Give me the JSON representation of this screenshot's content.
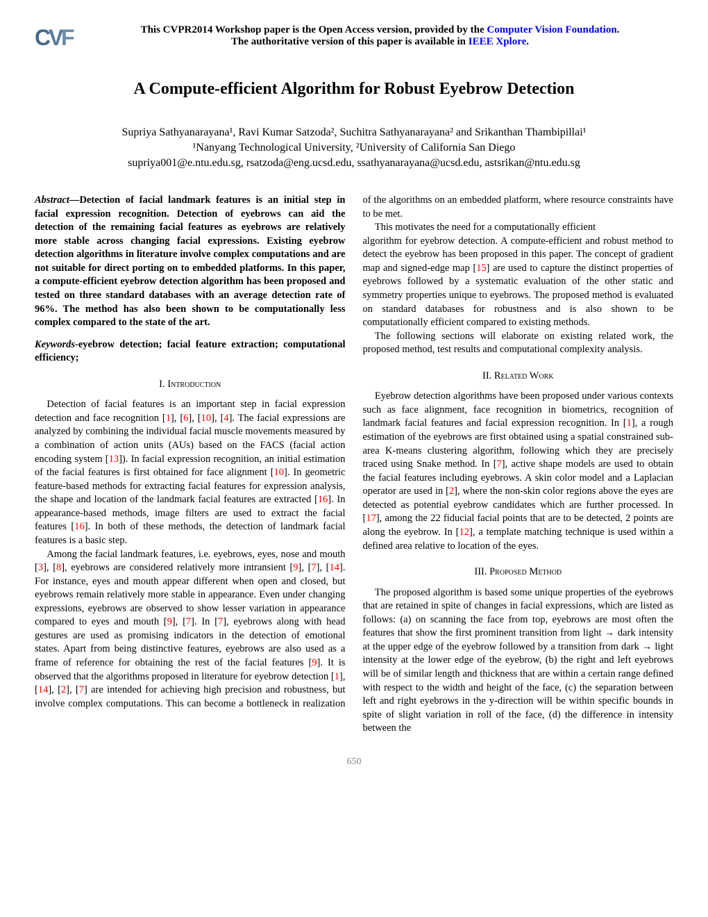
{
  "banner": {
    "line1_pre": "This CVPR2014 Workshop paper is the Open Access version, provided by the ",
    "line1_link": "Computer Vision Foundation",
    "line1_post": ".",
    "line2_pre": "The authoritative version of this paper is available in ",
    "line2_link": "IEEE Xplore",
    "line2_post": "."
  },
  "title": "A Compute-efficient Algorithm for Robust Eyebrow Detection",
  "authors": "Supriya Sathyanarayana¹, Ravi Kumar Satzoda², Suchitra Sathyanarayana² and Srikanthan Thambipillai¹",
  "affiliations": "¹Nanyang Technological University, ²University of California San Diego",
  "emails": "supriya001@e.ntu.edu.sg, rsatzoda@eng.ucsd.edu, ssathyanarayana@ucsd.edu, astsrikan@ntu.edu.sg",
  "abstract_label": "Abstract",
  "abstract_text": "—Detection of facial landmark features is an initial step in facial expression recognition. Detection of eyebrows can aid the detection of the remaining facial features as eyebrows are relatively more stable across changing facial expressions. Existing eyebrow detection algorithms in literature involve complex computations and are not suitable for direct porting on to embedded platforms. In this paper, a compute-efficient eyebrow detection algorithm has been proposed and tested on three standard databases with an average detection rate of 96%. The method has also been shown to be computationally less complex compared to the state of the art.",
  "keywords_label": "Keywords",
  "keywords_text": "-eyebrow detection; facial feature extraction; computational efficiency;",
  "sections": {
    "intro_heading": "I. Introduction",
    "related_heading": "II. Related Work",
    "proposed_heading": "III. Proposed Method"
  },
  "intro_p1_parts": [
    "Detection of facial features is an important step in facial expression detection and face recognition [",
    "1",
    "], [",
    "6",
    "], [",
    "10",
    "], [",
    "4",
    "]. The facial expressions are analyzed by combining the individual facial muscle movements measured by a combination of action units (AUs) based on the FACS (facial action encoding system [",
    "13",
    "]). In facial expression recognition, an initial estimation of the facial features is first obtained for face alignment [",
    "10",
    "]. In geometric feature-based methods for extracting facial features for expression analysis, the shape and location of the landmark facial features are extracted [",
    "16",
    "]. In appearance-based methods, image filters are used to extract the facial features [",
    "16",
    "]. In both of these methods, the detection of landmark facial features is a basic step."
  ],
  "intro_p2_parts": [
    "Among the facial landmark features, i.e. eyebrows, eyes, nose and mouth [",
    "3",
    "], [",
    "8",
    "], eyebrows are considered relatively more intransient [",
    "9",
    "], [",
    "7",
    "], [",
    "14",
    "]. For instance, eyes and mouth appear different when open and closed, but eyebrows remain relatively more stable in appearance. Even under changing expressions, eyebrows are observed to show lesser variation in appearance compared to eyes and mouth [",
    "9",
    "], [",
    "7",
    "]. In [",
    "7",
    "], eyebrows along with head gestures are used as promising indicators in the detection of emotional states. Apart from being distinctive features, eyebrows are also used as a frame of reference for obtaining the rest of the facial features [",
    "9",
    "]. It is observed that the algorithms proposed in literature for eyebrow detection [",
    "1",
    "], [",
    "14",
    "], [",
    "2",
    "], [",
    "7",
    "] are intended for achieving high precision and robustness, but involve complex computations. This can become a bottleneck in realization of the algorithms on an embedded platform, where resource constraints have to be met."
  ],
  "intro_p3": "This motivates the need for a computationally efficient",
  "col2_p1_parts": [
    "algorithm for eyebrow detection. A compute-efficient and robust method to detect the eyebrow has been proposed in this paper. The concept of gradient map and signed-edge map [",
    "15",
    "] are used to capture the distinct properties of eyebrows followed by a systematic evaluation of the other static and symmetry properties unique to eyebrows. The proposed method is evaluated on standard databases for robustness and is also shown to be computationally efficient compared to existing methods."
  ],
  "col2_p2": "The following sections will elaborate on existing related work, the proposed method, test results and computational complexity analysis.",
  "related_p1_parts": [
    "Eyebrow detection algorithms have been proposed under various contexts such as face alignment, face recognition in biometrics, recognition of landmark facial features and facial expression recognition. In [",
    "1",
    "], a rough estimation of the eyebrows are first obtained using a spatial constrained sub-area K-means clustering algorithm, following which they are precisely traced using Snake method. In [",
    "7",
    "], active shape models are used to obtain the facial features including eyebrows. A skin color model and a Laplacian operator are used in [",
    "2",
    "], where the non-skin color regions above the eyes are detected as potential eyebrow candidates which are further processed. In [",
    "17",
    "], among the 22 fiducial facial points that are to be detected, 2 points are along the eyebrow. In [",
    "12",
    "], a template matching technique is used within a defined area relative to location of the eyes."
  ],
  "proposed_p1": "The proposed algorithm is based some unique properties of the eyebrows that are retained in spite of changes in facial expressions, which are listed as follows: (a) on scanning the face from top, eyebrows are most often the features that show the first prominent transition from light → dark intensity at the upper edge of the eyebrow followed by a transition from dark → light intensity at the lower edge of the eyebrow, (b) the right and left eyebrows will be of similar length and thickness that are within a certain range defined with respect to the width and height of the face, (c) the separation between left and right eyebrows in the y-direction will be within specific bounds in spite of slight variation in roll of the face, (d) the difference in intensity between the",
  "page_number": "650",
  "colors": {
    "ref_red": "#ff0000",
    "ref_green": "#008000",
    "link_blue": "#0000ee",
    "cvf_c": "#4a6b8a",
    "cvf_v": "#5a7a99",
    "cvf_f": "#6a8aa8"
  }
}
